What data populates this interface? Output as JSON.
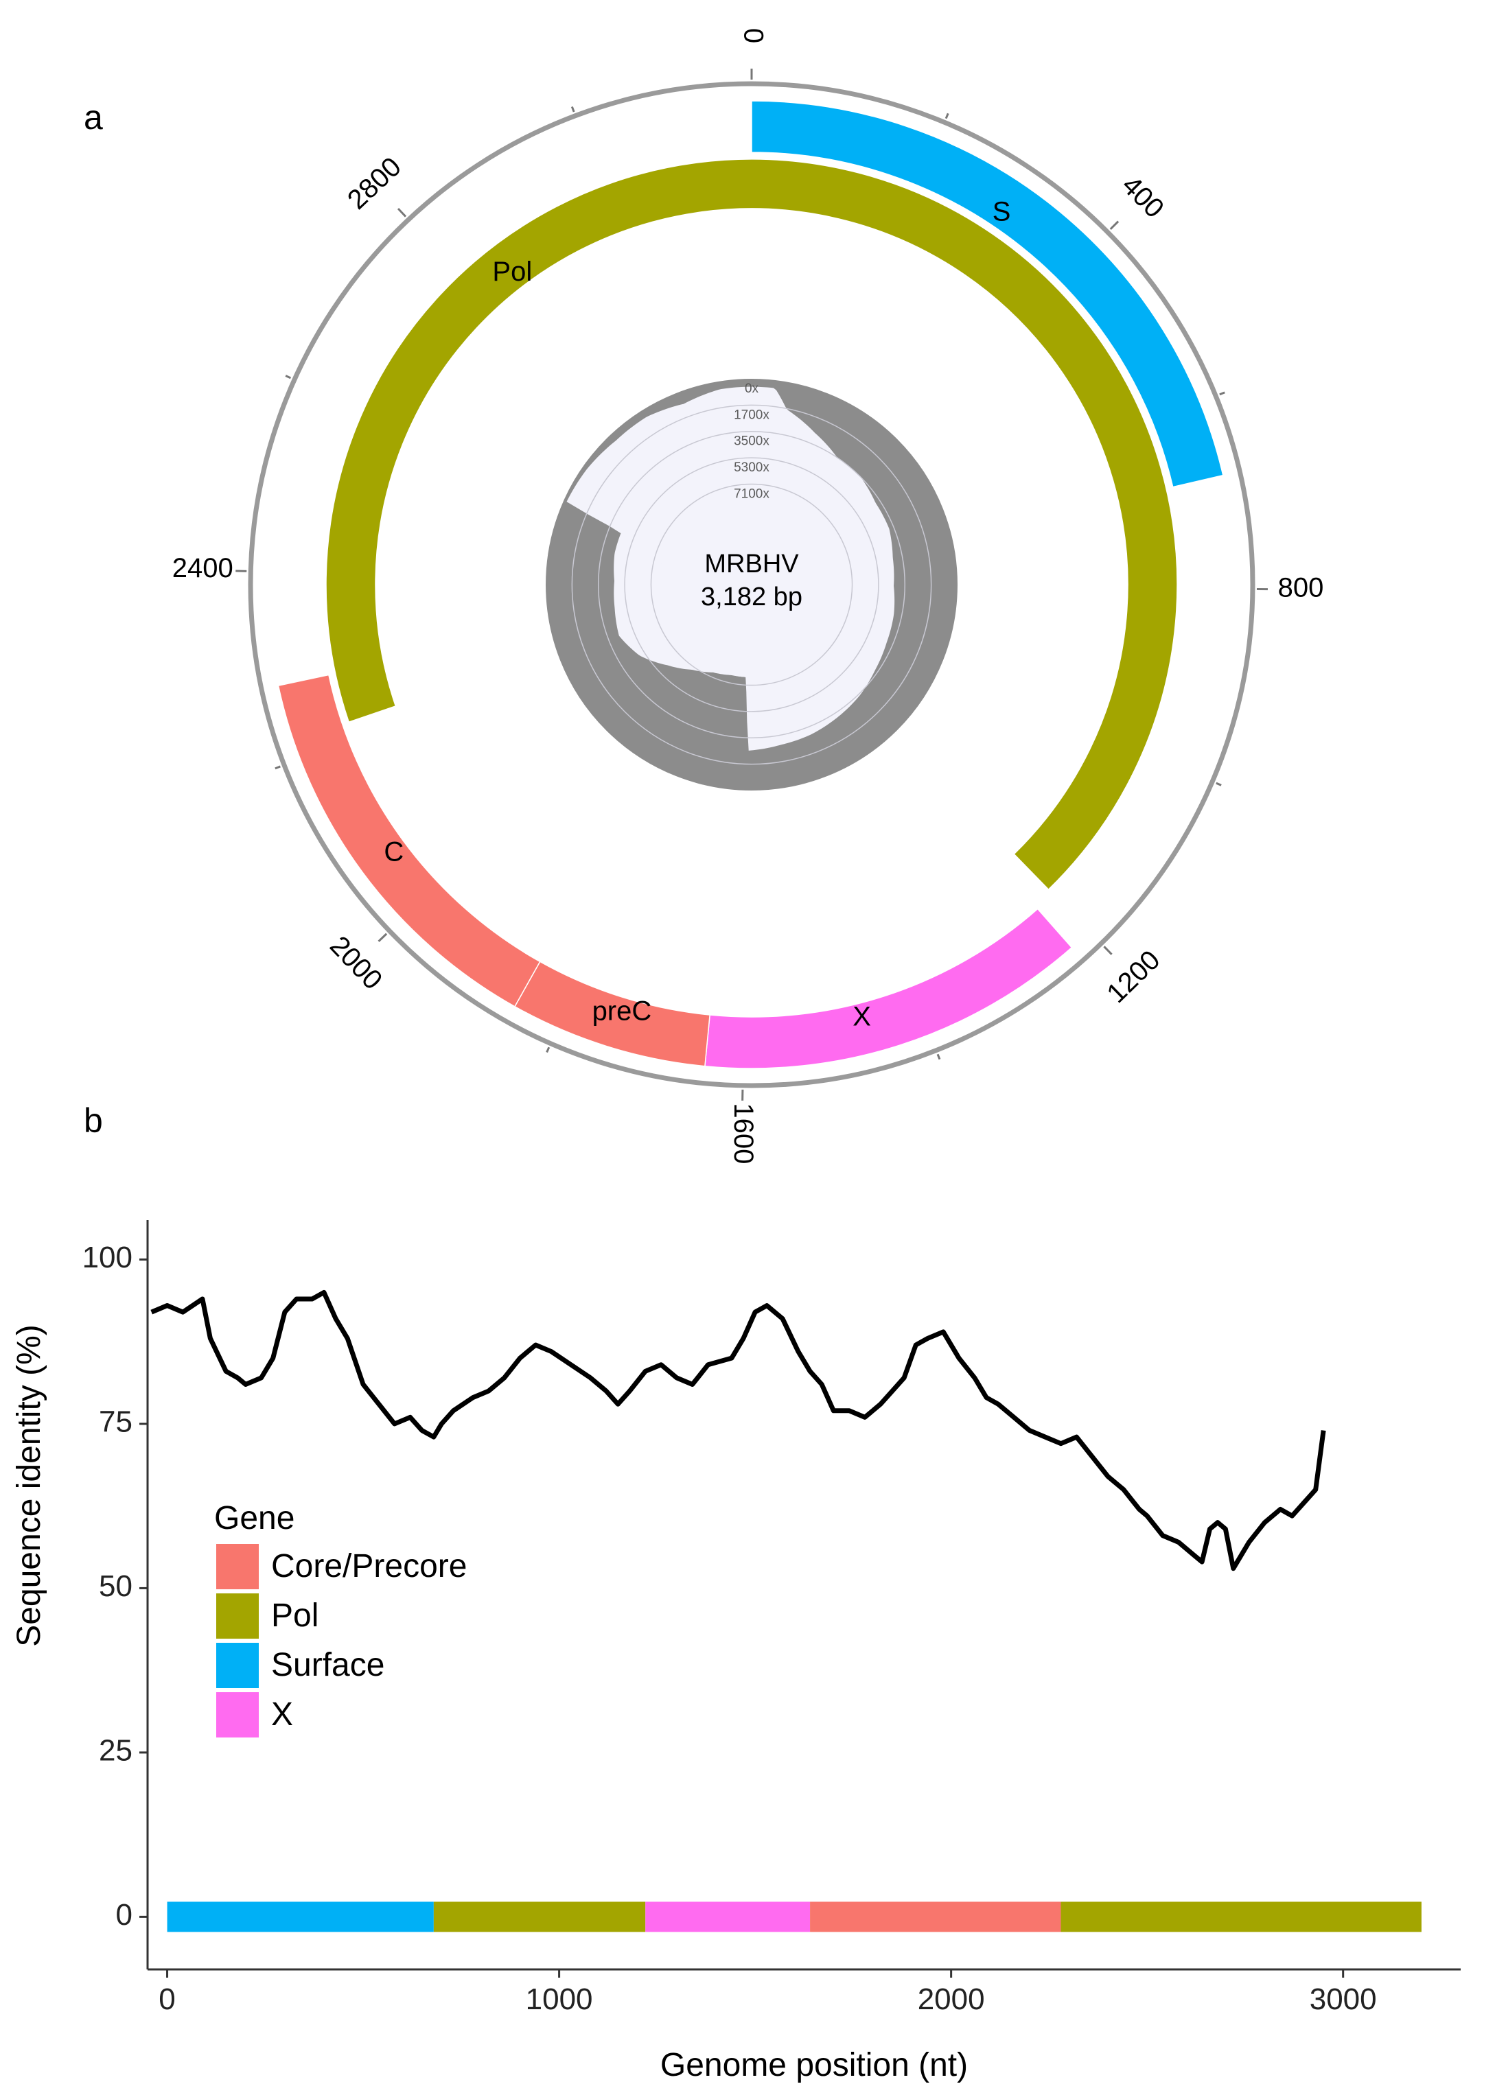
{
  "chart_data": [
    {
      "panel": "a",
      "type": "circular genome map",
      "center_label": [
        "MRBHV",
        "3,182 bp"
      ],
      "genome_length": 3182,
      "ring_ticks": [
        0,
        400,
        800,
        1200,
        1600,
        2000,
        2400,
        2800
      ],
      "genes": [
        {
          "name": "S",
          "start": 0,
          "end": 680,
          "color": "#00b0f6",
          "track": "outer"
        },
        {
          "name": "Pol",
          "start": 2220,
          "end": 1200,
          "color": "#a3a500",
          "track": "inner",
          "wraps": true
        },
        {
          "name": "X",
          "start": 1225,
          "end": 1640,
          "color": "#ff6bf0",
          "track": "outer"
        },
        {
          "name": "preC",
          "start": 1640,
          "end": 1850,
          "color": "#f8766d",
          "track": "outer"
        },
        {
          "name": "C",
          "start": 1850,
          "end": 2280,
          "color": "#f8766d",
          "track": "outer"
        }
      ],
      "coverage_track": {
        "ring_labels": [
          "0x",
          "1700x",
          "3500x",
          "5300x",
          "7100x"
        ],
        "max": 7100,
        "profile_points": [
          {
            "pos": 0,
            "depth": 500
          },
          {
            "pos": 60,
            "depth": 500
          },
          {
            "pos": 100,
            "depth": 1700
          },
          {
            "pos": 200,
            "depth": 2600
          },
          {
            "pos": 300,
            "depth": 3300
          },
          {
            "pos": 400,
            "depth": 3300
          },
          {
            "pos": 500,
            "depth": 3600
          },
          {
            "pos": 600,
            "depth": 3600
          },
          {
            "pos": 700,
            "depth": 3900
          },
          {
            "pos": 800,
            "depth": 4000
          },
          {
            "pos": 900,
            "depth": 3800
          },
          {
            "pos": 1000,
            "depth": 3700
          },
          {
            "pos": 1100,
            "depth": 3500
          },
          {
            "pos": 1200,
            "depth": 3200
          },
          {
            "pos": 1300,
            "depth": 3000
          },
          {
            "pos": 1400,
            "depth": 2800
          },
          {
            "pos": 1500,
            "depth": 2700
          },
          {
            "pos": 1600,
            "depth": 2500
          },
          {
            "pos": 1620,
            "depth": 7100
          },
          {
            "pos": 1700,
            "depth": 7100
          },
          {
            "pos": 1800,
            "depth": 6900
          },
          {
            "pos": 1900,
            "depth": 6400
          },
          {
            "pos": 2000,
            "depth": 5600
          },
          {
            "pos": 2100,
            "depth": 4600
          },
          {
            "pos": 2200,
            "depth": 4000
          },
          {
            "pos": 2300,
            "depth": 4200
          },
          {
            "pos": 2400,
            "depth": 4300
          },
          {
            "pos": 2500,
            "depth": 4100
          },
          {
            "pos": 2580,
            "depth": 4100
          },
          {
            "pos": 2600,
            "depth": 200
          },
          {
            "pos": 2700,
            "depth": 300
          },
          {
            "pos": 2800,
            "depth": 500
          },
          {
            "pos": 2900,
            "depth": 500
          },
          {
            "pos": 3000,
            "depth": 800
          },
          {
            "pos": 3100,
            "depth": 500
          },
          {
            "pos": 3182,
            "depth": 500
          }
        ],
        "colors": {
          "background": "#8c8c8c",
          "fill": "#f3f3fb"
        }
      }
    },
    {
      "panel": "b",
      "type": "line",
      "xlabel": "Genome position (nt)",
      "ylabel": "Sequence identity (%)",
      "xlim": [
        -50,
        3300
      ],
      "ylim": [
        -8,
        106
      ],
      "xticks": [
        0,
        1000,
        2000,
        3000
      ],
      "xtick_labels": [
        "0",
        "1000",
        "2000",
        "3000"
      ],
      "yticks": [
        0,
        25,
        50,
        75,
        100
      ],
      "ytick_labels": [
        "0",
        "25",
        "50",
        "75",
        "100"
      ],
      "series": [
        {
          "color": "#000000",
          "x": [
            -40,
            0,
            40,
            90,
            110,
            150,
            180,
            200,
            240,
            270,
            300,
            330,
            370,
            400,
            430,
            460,
            500,
            540,
            580,
            620,
            650,
            680,
            700,
            730,
            780,
            820,
            860,
            900,
            940,
            980,
            1030,
            1080,
            1120,
            1150,
            1180,
            1220,
            1260,
            1300,
            1340,
            1380,
            1440,
            1470,
            1500,
            1530,
            1570,
            1610,
            1640,
            1670,
            1700,
            1740,
            1780,
            1820,
            1850,
            1880,
            1910,
            1940,
            1980,
            2020,
            2060,
            2090,
            2120,
            2160,
            2200,
            2240,
            2280,
            2320,
            2360,
            2400,
            2440,
            2480,
            2500,
            2540,
            2580,
            2620,
            2640,
            2660,
            2680,
            2700,
            2720,
            2760,
            2800,
            2840,
            2870,
            2900,
            2930,
            2950
          ],
          "values": [
            92,
            93,
            92,
            94,
            88,
            83,
            82,
            81,
            82,
            85,
            92,
            94,
            94,
            95,
            91,
            88,
            81,
            78,
            75,
            76,
            74,
            73,
            75,
            77,
            79,
            80,
            82,
            85,
            87,
            86,
            84,
            82,
            80,
            78,
            80,
            83,
            84,
            82,
            81,
            84,
            85,
            88,
            92,
            93,
            91,
            86,
            83,
            81,
            77,
            77,
            76,
            78,
            80,
            82,
            87,
            88,
            89,
            85,
            82,
            79,
            78,
            76,
            74,
            73,
            72,
            73,
            70,
            67,
            65,
            62,
            61,
            58,
            57,
            55,
            54,
            59,
            60,
            59,
            53,
            57,
            60,
            62,
            61,
            63,
            65,
            74
          ]
        }
      ],
      "gene_bar": [
        {
          "gene": "Surface",
          "start": 0,
          "end": 680,
          "color": "#00b0f6"
        },
        {
          "gene": "Pol",
          "start": 680,
          "end": 1220,
          "color": "#a3a500"
        },
        {
          "gene": "X",
          "start": 1220,
          "end": 1640,
          "color": "#ff6bf0"
        },
        {
          "gene": "Core/Precore",
          "start": 1640,
          "end": 2280,
          "color": "#f8766d"
        },
        {
          "gene": "Pol",
          "start": 2280,
          "end": 3200,
          "color": "#a3a500"
        }
      ],
      "legend": {
        "title": "Gene",
        "placement": "middle-left",
        "entries": [
          {
            "label": "Core/Precore",
            "color": "#f8766d"
          },
          {
            "label": "Pol",
            "color": "#a3a500"
          },
          {
            "label": "Surface",
            "color": "#00b0f6"
          },
          {
            "label": "X",
            "color": "#ff6bf0"
          }
        ]
      },
      "grid": false
    }
  ]
}
